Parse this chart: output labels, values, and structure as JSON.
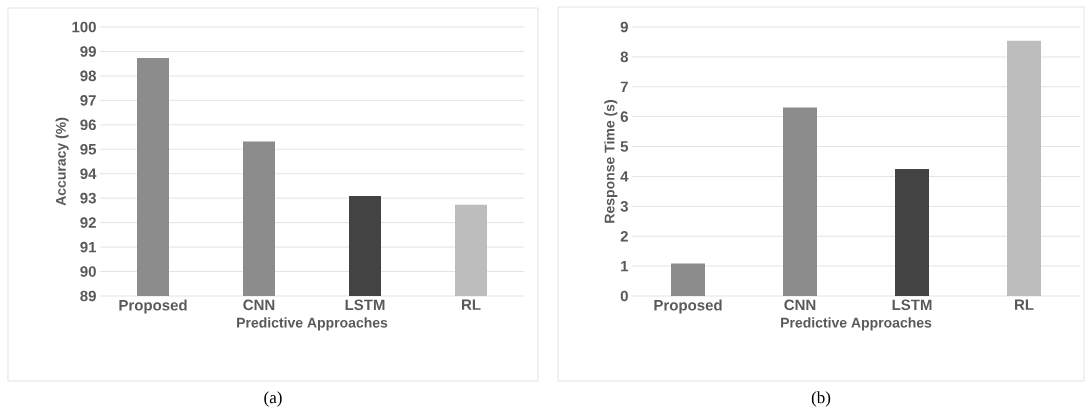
{
  "chart_data": [
    {
      "type": "bar",
      "categories": [
        "Proposed",
        "CNN",
        "LSTM",
        "RL"
      ],
      "values": [
        98.73,
        95.32,
        93.09,
        92.73
      ],
      "colors": [
        "#8c8c8c",
        "#8c8c8c",
        "#434343",
        "#bdbdbd"
      ],
      "ylim": [
        89,
        100
      ],
      "yticks": [
        89,
        90,
        91,
        92,
        93,
        94,
        95,
        96,
        97,
        98,
        99,
        100
      ],
      "ylabel": "Accuracy (%)",
      "xlabel": "Predictive Approaches",
      "grid": "y",
      "annotations": [
        "(a)"
      ]
    },
    {
      "type": "bar",
      "categories": [
        "Proposed",
        "CNN",
        "LSTM",
        "RL"
      ],
      "values": [
        1.09,
        6.31,
        4.25,
        8.54
      ],
      "colors": [
        "#8c8c8c",
        "#8c8c8c",
        "#434343",
        "#bdbdbd"
      ],
      "ylim": [
        0,
        9
      ],
      "yticks": [
        0,
        1,
        2,
        3,
        4,
        5,
        6,
        7,
        8,
        9
      ],
      "ylabel": "Response Time (s)",
      "xlabel": "Predictive Approaches",
      "grid": "y",
      "annotations": [
        "(b)"
      ]
    }
  ]
}
